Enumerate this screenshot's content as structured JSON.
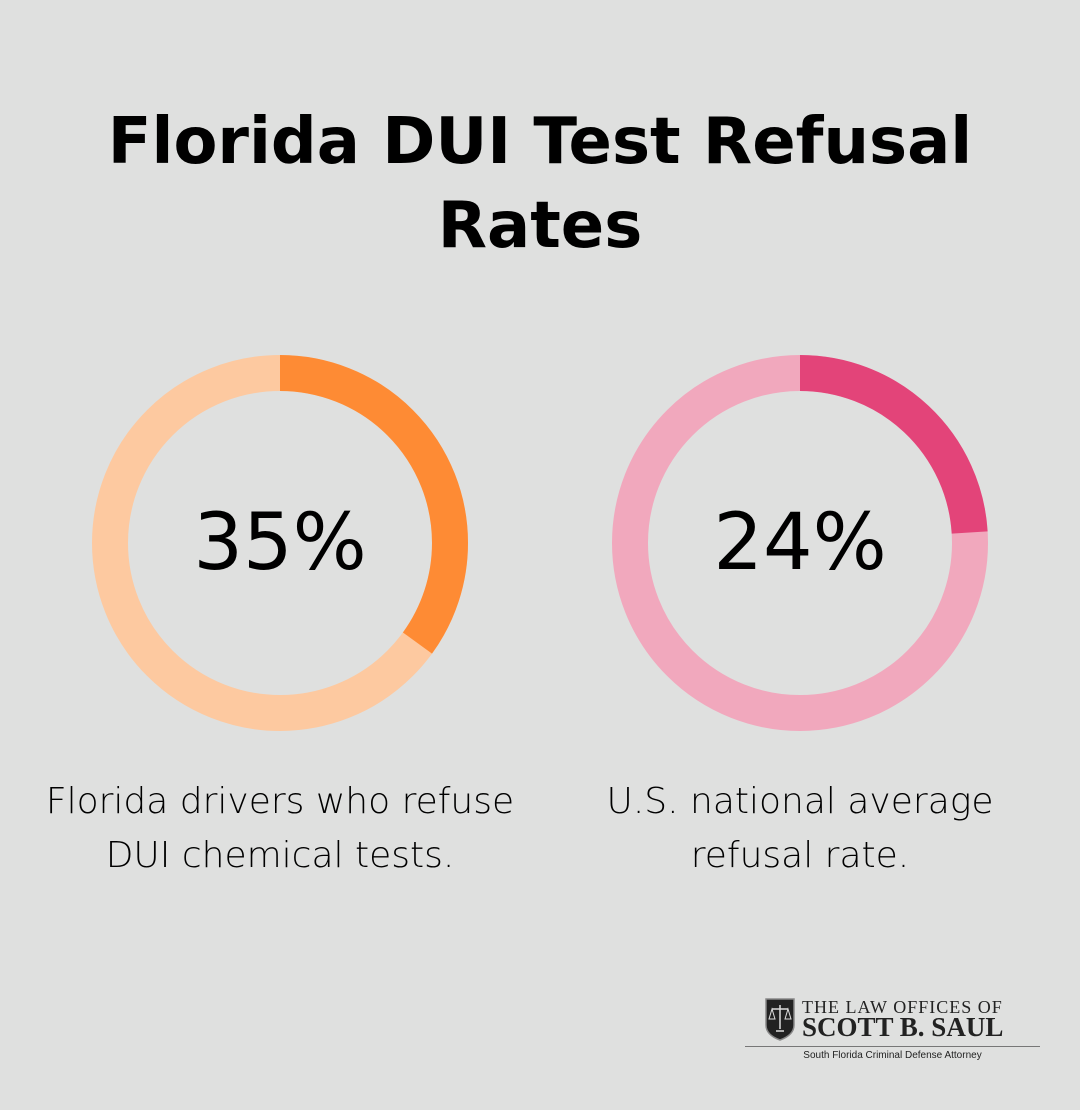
{
  "title": "Florida DUI Test Refusal Rates",
  "chart_data": [
    {
      "type": "pie",
      "variant": "donut",
      "value": 35,
      "max": 100,
      "label": "35%",
      "caption": "Florida drivers who refuse DUI chemical tests.",
      "colors": {
        "filled": "#fe8b34",
        "remainder": "#fdc9a0"
      }
    },
    {
      "type": "pie",
      "variant": "donut",
      "value": 24,
      "max": 100,
      "label": "24%",
      "caption": "U.S. national average refusal rate.",
      "colors": {
        "filled": "#e34479",
        "remainder": "#f1a8bd"
      }
    }
  ],
  "logo": {
    "line1": "The Law Offices of",
    "line2": "Scott B. Saul",
    "tagline": "South Florida Criminal Defense Attorney",
    "icon": "scales-shield-icon"
  }
}
